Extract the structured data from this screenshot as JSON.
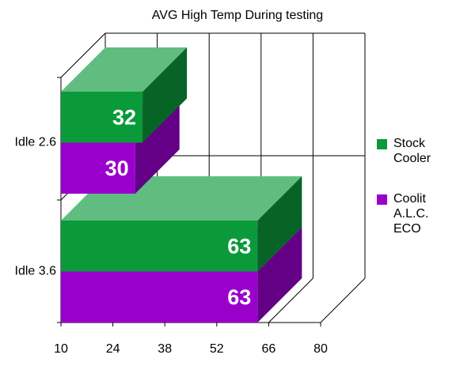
{
  "chart_data": {
    "type": "bar3d_horizontal",
    "title": "AVG High Temp During testing",
    "categories": [
      "Idle 2.6",
      "Idle 3.6"
    ],
    "series": [
      {
        "name": "Stock Cooler",
        "color": "#0a9a3a",
        "values": [
          32,
          63
        ]
      },
      {
        "name": "Coolit A.L.C. ECO",
        "color": "#9900cc",
        "values": [
          30,
          63
        ]
      }
    ],
    "xlim": [
      10,
      80
    ],
    "xticks": [
      10,
      24,
      38,
      52,
      66,
      80
    ],
    "grid": true,
    "legend": "right"
  }
}
